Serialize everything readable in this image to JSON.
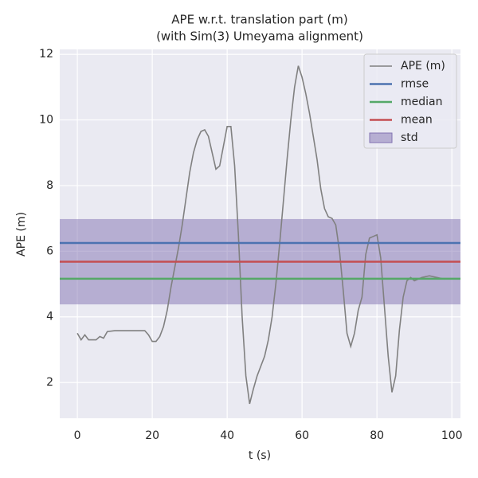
{
  "chart_data": {
    "type": "line",
    "title": [
      "APE w.r.t. translation part (m)",
      "(with Sim(3) Umeyama alignment)"
    ],
    "xlabel": "t (s)",
    "ylabel": "APE (m)",
    "xlim": [
      -4.7,
      102.3
    ],
    "ylim": [
      0.91,
      12.15
    ],
    "xticks": [
      0,
      20,
      40,
      60,
      80,
      100
    ],
    "yticks": [
      2,
      4,
      6,
      8,
      10,
      12
    ],
    "grid": true,
    "legend": "upper right",
    "x": [
      0,
      1,
      2,
      3,
      5,
      6,
      7,
      8,
      10,
      18,
      19,
      20,
      21,
      22,
      23,
      24,
      25,
      26,
      27,
      28,
      29,
      30,
      31,
      32,
      33,
      34,
      35,
      36,
      37,
      38,
      39,
      40,
      41,
      42,
      43,
      44,
      45,
      46,
      47,
      48,
      49,
      50,
      51,
      52,
      53,
      54,
      55,
      56,
      57,
      58,
      59,
      60,
      61,
      62,
      63,
      64,
      65,
      66,
      67,
      68,
      69,
      70,
      71,
      72,
      73,
      74,
      75,
      76,
      77,
      78,
      79,
      80,
      81,
      82,
      83,
      84,
      85,
      86,
      87,
      88,
      89,
      90,
      92,
      94,
      96,
      98
    ],
    "series": [
      {
        "name": "APE (m)",
        "color": "#808080",
        "kind": "line",
        "values": [
          3.5,
          3.3,
          3.45,
          3.3,
          3.3,
          3.4,
          3.35,
          3.55,
          3.58,
          3.58,
          3.45,
          3.25,
          3.25,
          3.4,
          3.7,
          4.2,
          4.9,
          5.5,
          6.1,
          6.8,
          7.6,
          8.4,
          9.0,
          9.4,
          9.65,
          9.7,
          9.5,
          9.0,
          8.5,
          8.6,
          9.2,
          9.8,
          9.8,
          8.6,
          6.5,
          4.0,
          2.2,
          1.35,
          1.8,
          2.2,
          2.5,
          2.8,
          3.3,
          4.0,
          5.0,
          6.2,
          7.5,
          8.8,
          10.0,
          11.0,
          11.65,
          11.3,
          10.8,
          10.2,
          9.5,
          8.8,
          7.9,
          7.3,
          7.05,
          7.0,
          6.8,
          6.0,
          4.8,
          3.5,
          3.1,
          3.5,
          4.2,
          4.6,
          5.9,
          6.4,
          6.45,
          6.5,
          5.8,
          4.3,
          2.8,
          1.7,
          2.2,
          3.6,
          4.6,
          5.1,
          5.2,
          5.1,
          5.2,
          5.25,
          5.2,
          5.15
        ]
      },
      {
        "name": "rmse",
        "color": "#4c72b0",
        "kind": "hline",
        "value": 6.25
      },
      {
        "name": "median",
        "color": "#55a868",
        "kind": "hline",
        "value": 5.16
      },
      {
        "name": "mean",
        "color": "#c44e52",
        "kind": "hline",
        "value": 5.68
      },
      {
        "name": "std",
        "color": "#8172b2",
        "kind": "band",
        "value": 1.3
      }
    ]
  }
}
